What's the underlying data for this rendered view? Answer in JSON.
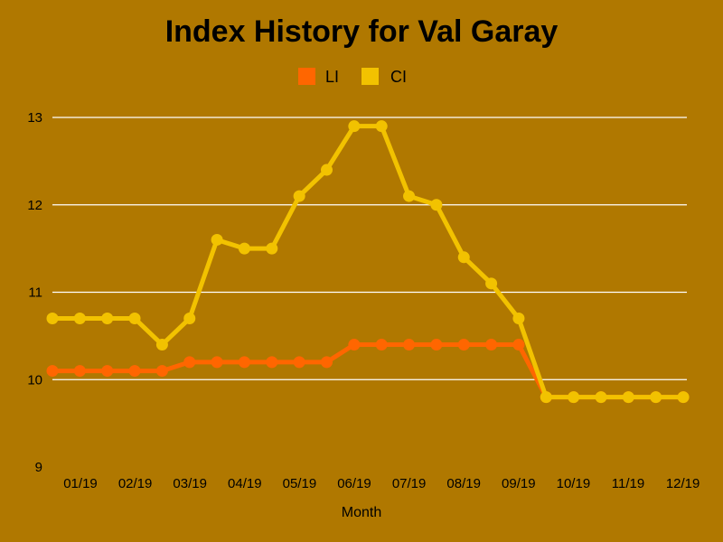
{
  "chart_data": {
    "type": "line",
    "title": "Index History for Val Garay",
    "xlabel": "Month",
    "ylabel": "",
    "ylim": [
      9,
      13
    ],
    "y_ticks": [
      "9",
      "10",
      "11",
      "12",
      "13"
    ],
    "x_tick_labels": [
      "01/19",
      "02/19",
      "03/19",
      "04/19",
      "05/19",
      "06/19",
      "07/19",
      "08/19",
      "09/19",
      "10/19",
      "11/19",
      "12/19"
    ],
    "grid": "horizontal",
    "legend_position": "top-center",
    "series": [
      {
        "name": "LI",
        "color": "#ff6600",
        "values": [
          10.1,
          10.1,
          10.1,
          10.1,
          10.1,
          10.2,
          10.2,
          10.2,
          10.2,
          10.2,
          10.2,
          10.4,
          10.4,
          10.4,
          10.4,
          10.4,
          10.4,
          10.4,
          9.8,
          9.8,
          9.8,
          9.8,
          9.8,
          9.8
        ]
      },
      {
        "name": "CI",
        "color": "#f2c200",
        "values": [
          10.7,
          10.7,
          10.7,
          10.7,
          10.4,
          10.7,
          11.6,
          11.5,
          11.5,
          12.1,
          12.4,
          12.9,
          12.9,
          12.1,
          12.0,
          11.4,
          11.1,
          10.7,
          9.8,
          9.8,
          9.8,
          9.8,
          9.8,
          9.8
        ]
      }
    ]
  }
}
